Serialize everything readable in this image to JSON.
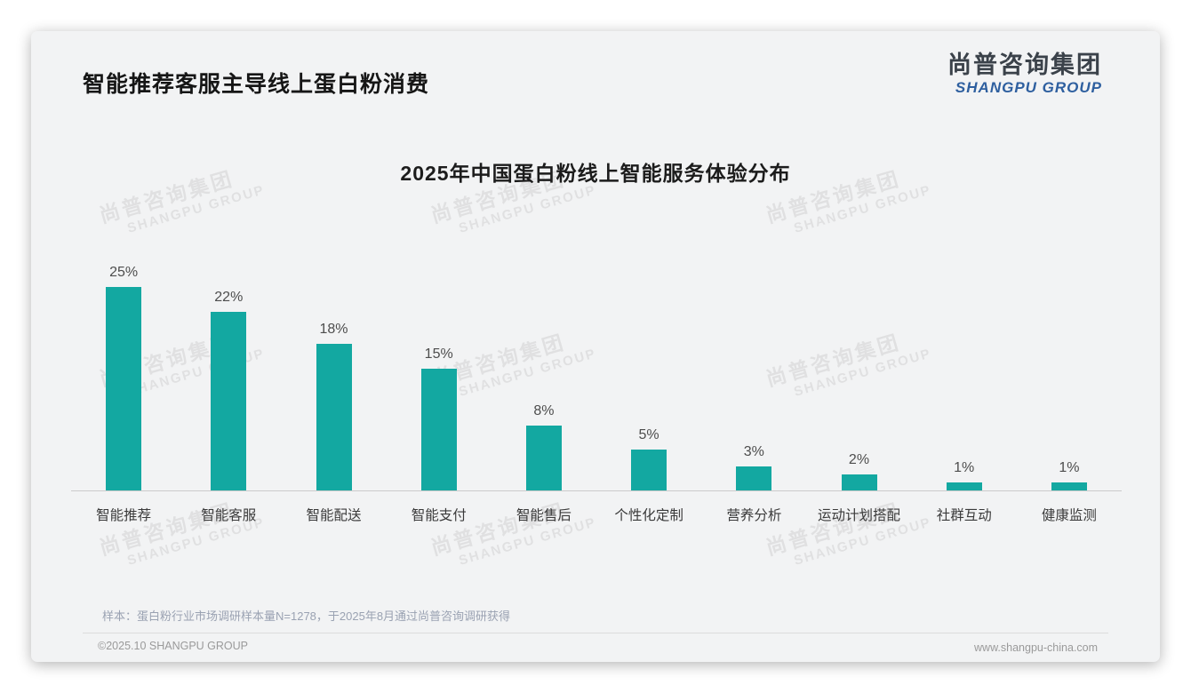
{
  "header": {
    "page_title": "智能推荐客服主导线上蛋白粉消费"
  },
  "brand": {
    "logo_cn": "尚普咨询集团",
    "logo_en": "SHANGPU GROUP",
    "logo_en_color": "#2e5f9f"
  },
  "watermark_text": {
    "cn": "尚普咨询集团",
    "en": "SHANGPU GROUP"
  },
  "chart_data": {
    "type": "bar",
    "title": "2025年中国蛋白粉线上智能服务体验分布",
    "categories": [
      "智能推荐",
      "智能客服",
      "智能配送",
      "智能支付",
      "智能售后",
      "个性化定制",
      "营养分析",
      "运动计划搭配",
      "社群互动",
      "健康监测"
    ],
    "values": [
      25,
      22,
      18,
      15,
      8,
      5,
      3,
      2,
      1,
      1
    ],
    "labels": [
      "25%",
      "22%",
      "18%",
      "15%",
      "8%",
      "5%",
      "3%",
      "2%",
      "1%",
      "1%"
    ],
    "unit": "%",
    "bar_color": "#13a8a1",
    "xlabel": "",
    "ylabel": "",
    "ylim": [
      0,
      27
    ],
    "grid": false,
    "legend": "none"
  },
  "footer": {
    "sample_note": "样本：蛋白粉行业市场调研样本量N=1278，于2025年8月通过尚普咨询调研获得",
    "copyright": "©2025.10 SHANGPU GROUP",
    "website": "www.shangpu-china.com"
  }
}
